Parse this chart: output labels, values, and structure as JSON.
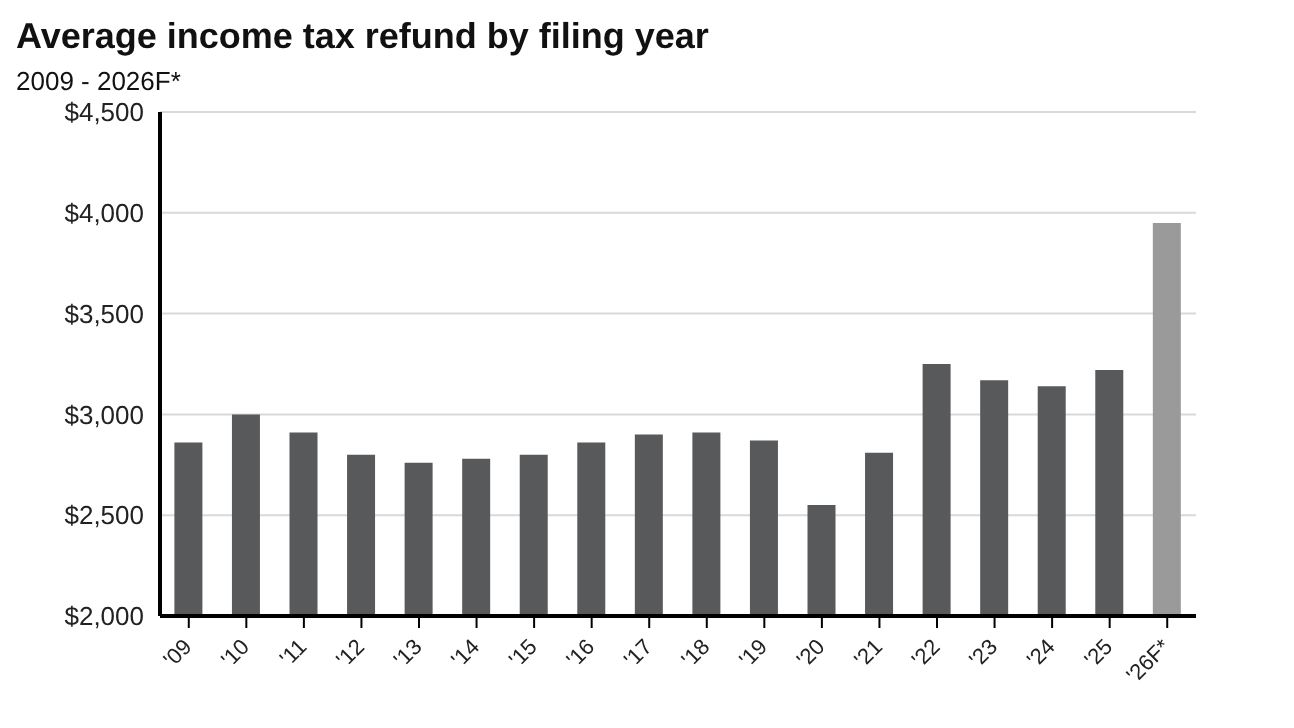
{
  "chart_data": {
    "type": "bar",
    "title": "Average income tax refund by filing year",
    "subtitle": "2009 - 2026F*",
    "categories": [
      "'09",
      "'10",
      "'11",
      "'12",
      "'13",
      "'14",
      "'15",
      "'16",
      "'17",
      "'18",
      "'19",
      "'20",
      "'21",
      "'22",
      "'23",
      "'24",
      "'25",
      "'26F*"
    ],
    "values": [
      2860,
      3000,
      2910,
      2800,
      2760,
      2780,
      2800,
      2860,
      2900,
      2910,
      2870,
      2550,
      2810,
      3250,
      3170,
      3140,
      3220,
      3950
    ],
    "colors": [
      "#58595b",
      "#58595b",
      "#58595b",
      "#58595b",
      "#58595b",
      "#58595b",
      "#58595b",
      "#58595b",
      "#58595b",
      "#58595b",
      "#58595b",
      "#58595b",
      "#58595b",
      "#58595b",
      "#58595b",
      "#58595b",
      "#58595b",
      "#9a9a9a"
    ],
    "ylim": [
      2000,
      4500
    ],
    "yticks": [
      {
        "value": 2000,
        "label": "$2,000"
      },
      {
        "value": 2500,
        "label": "$2,500"
      },
      {
        "value": 3000,
        "label": "$3,000"
      },
      {
        "value": 3500,
        "label": "$3,500"
      },
      {
        "value": 4000,
        "label": "$4,000"
      },
      {
        "value": 4500,
        "label": "$4,500"
      }
    ],
    "grid": "y"
  }
}
